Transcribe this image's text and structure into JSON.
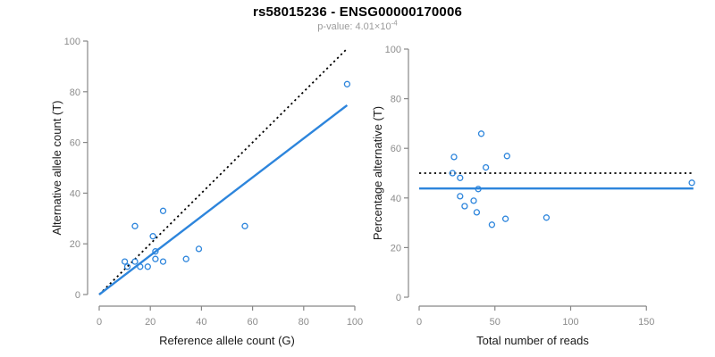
{
  "header": {
    "title": "rs58015236 - ENSG00000170006",
    "pvalue_label": "p-value:",
    "pvalue_base": "4.01×10",
    "pvalue_exponent": "-4"
  },
  "colors": {
    "accent_blue": "#2d85dc",
    "dotted_black": "#000000",
    "axis_gray": "#878787",
    "tick_label_gray": "#8c8c8c",
    "subtitle_gray": "#9b9b9b",
    "axis_title_color": "#1a1a1a",
    "background": "#ffffff"
  },
  "chart_data": [
    {
      "type": "scatter",
      "panel": "left",
      "xlabel": "Reference allele count (G)",
      "ylabel": "Alternative allele count (T)",
      "xlim": [
        0,
        100
      ],
      "ylim": [
        0,
        100
      ],
      "xticks": [
        0,
        20,
        40,
        60,
        80,
        100
      ],
      "yticks": [
        0,
        20,
        40,
        60,
        80,
        100
      ],
      "grid": false,
      "legend": "none",
      "points": [
        [
          10,
          13
        ],
        [
          11,
          11
        ],
        [
          14,
          13
        ],
        [
          14,
          27
        ],
        [
          16,
          11
        ],
        [
          19,
          11
        ],
        [
          21,
          23
        ],
        [
          22,
          14
        ],
        [
          22,
          17
        ],
        [
          25,
          13
        ],
        [
          25,
          33
        ],
        [
          34,
          14
        ],
        [
          39,
          18
        ],
        [
          57,
          27
        ],
        [
          97,
          83
        ]
      ],
      "lines": [
        {
          "name": "identity-line",
          "style": "dotted",
          "color": "#000000",
          "from": [
            0,
            0
          ],
          "to": [
            97,
            97
          ]
        },
        {
          "name": "fitted-proportion-line",
          "style": "solid",
          "color": "#2d85dc",
          "from": [
            0,
            0
          ],
          "to": [
            97,
            74.7
          ]
        }
      ]
    },
    {
      "type": "scatter",
      "panel": "right",
      "xlabel": "Total number of reads",
      "ylabel": "Percentage alternative (T)",
      "xlim": [
        0,
        185
      ],
      "ylim": [
        0,
        100
      ],
      "xticks": [
        0,
        50,
        100,
        150
      ],
      "yticks": [
        0,
        20,
        40,
        60,
        80,
        100
      ],
      "grid": false,
      "legend": "none",
      "points": [
        [
          22,
          50
        ],
        [
          23,
          56.5
        ],
        [
          27,
          48.1
        ],
        [
          27,
          40.7
        ],
        [
          30,
          36.7
        ],
        [
          36,
          38.9
        ],
        [
          38,
          34.2
        ],
        [
          39,
          43.6
        ],
        [
          41,
          65.9
        ],
        [
          44,
          52.3
        ],
        [
          48,
          29.2
        ],
        [
          57,
          31.6
        ],
        [
          58,
          56.9
        ],
        [
          84,
          32.1
        ],
        [
          180,
          46.1
        ]
      ],
      "lines": [
        {
          "name": "expected-50-percent-line",
          "style": "dotted",
          "color": "#000000",
          "from": [
            0,
            50
          ],
          "to": [
            181,
            50
          ]
        },
        {
          "name": "mean-percentage-line",
          "style": "solid",
          "color": "#2d85dc",
          "from": [
            0,
            43.8
          ],
          "to": [
            181,
            43.8
          ]
        }
      ]
    }
  ]
}
